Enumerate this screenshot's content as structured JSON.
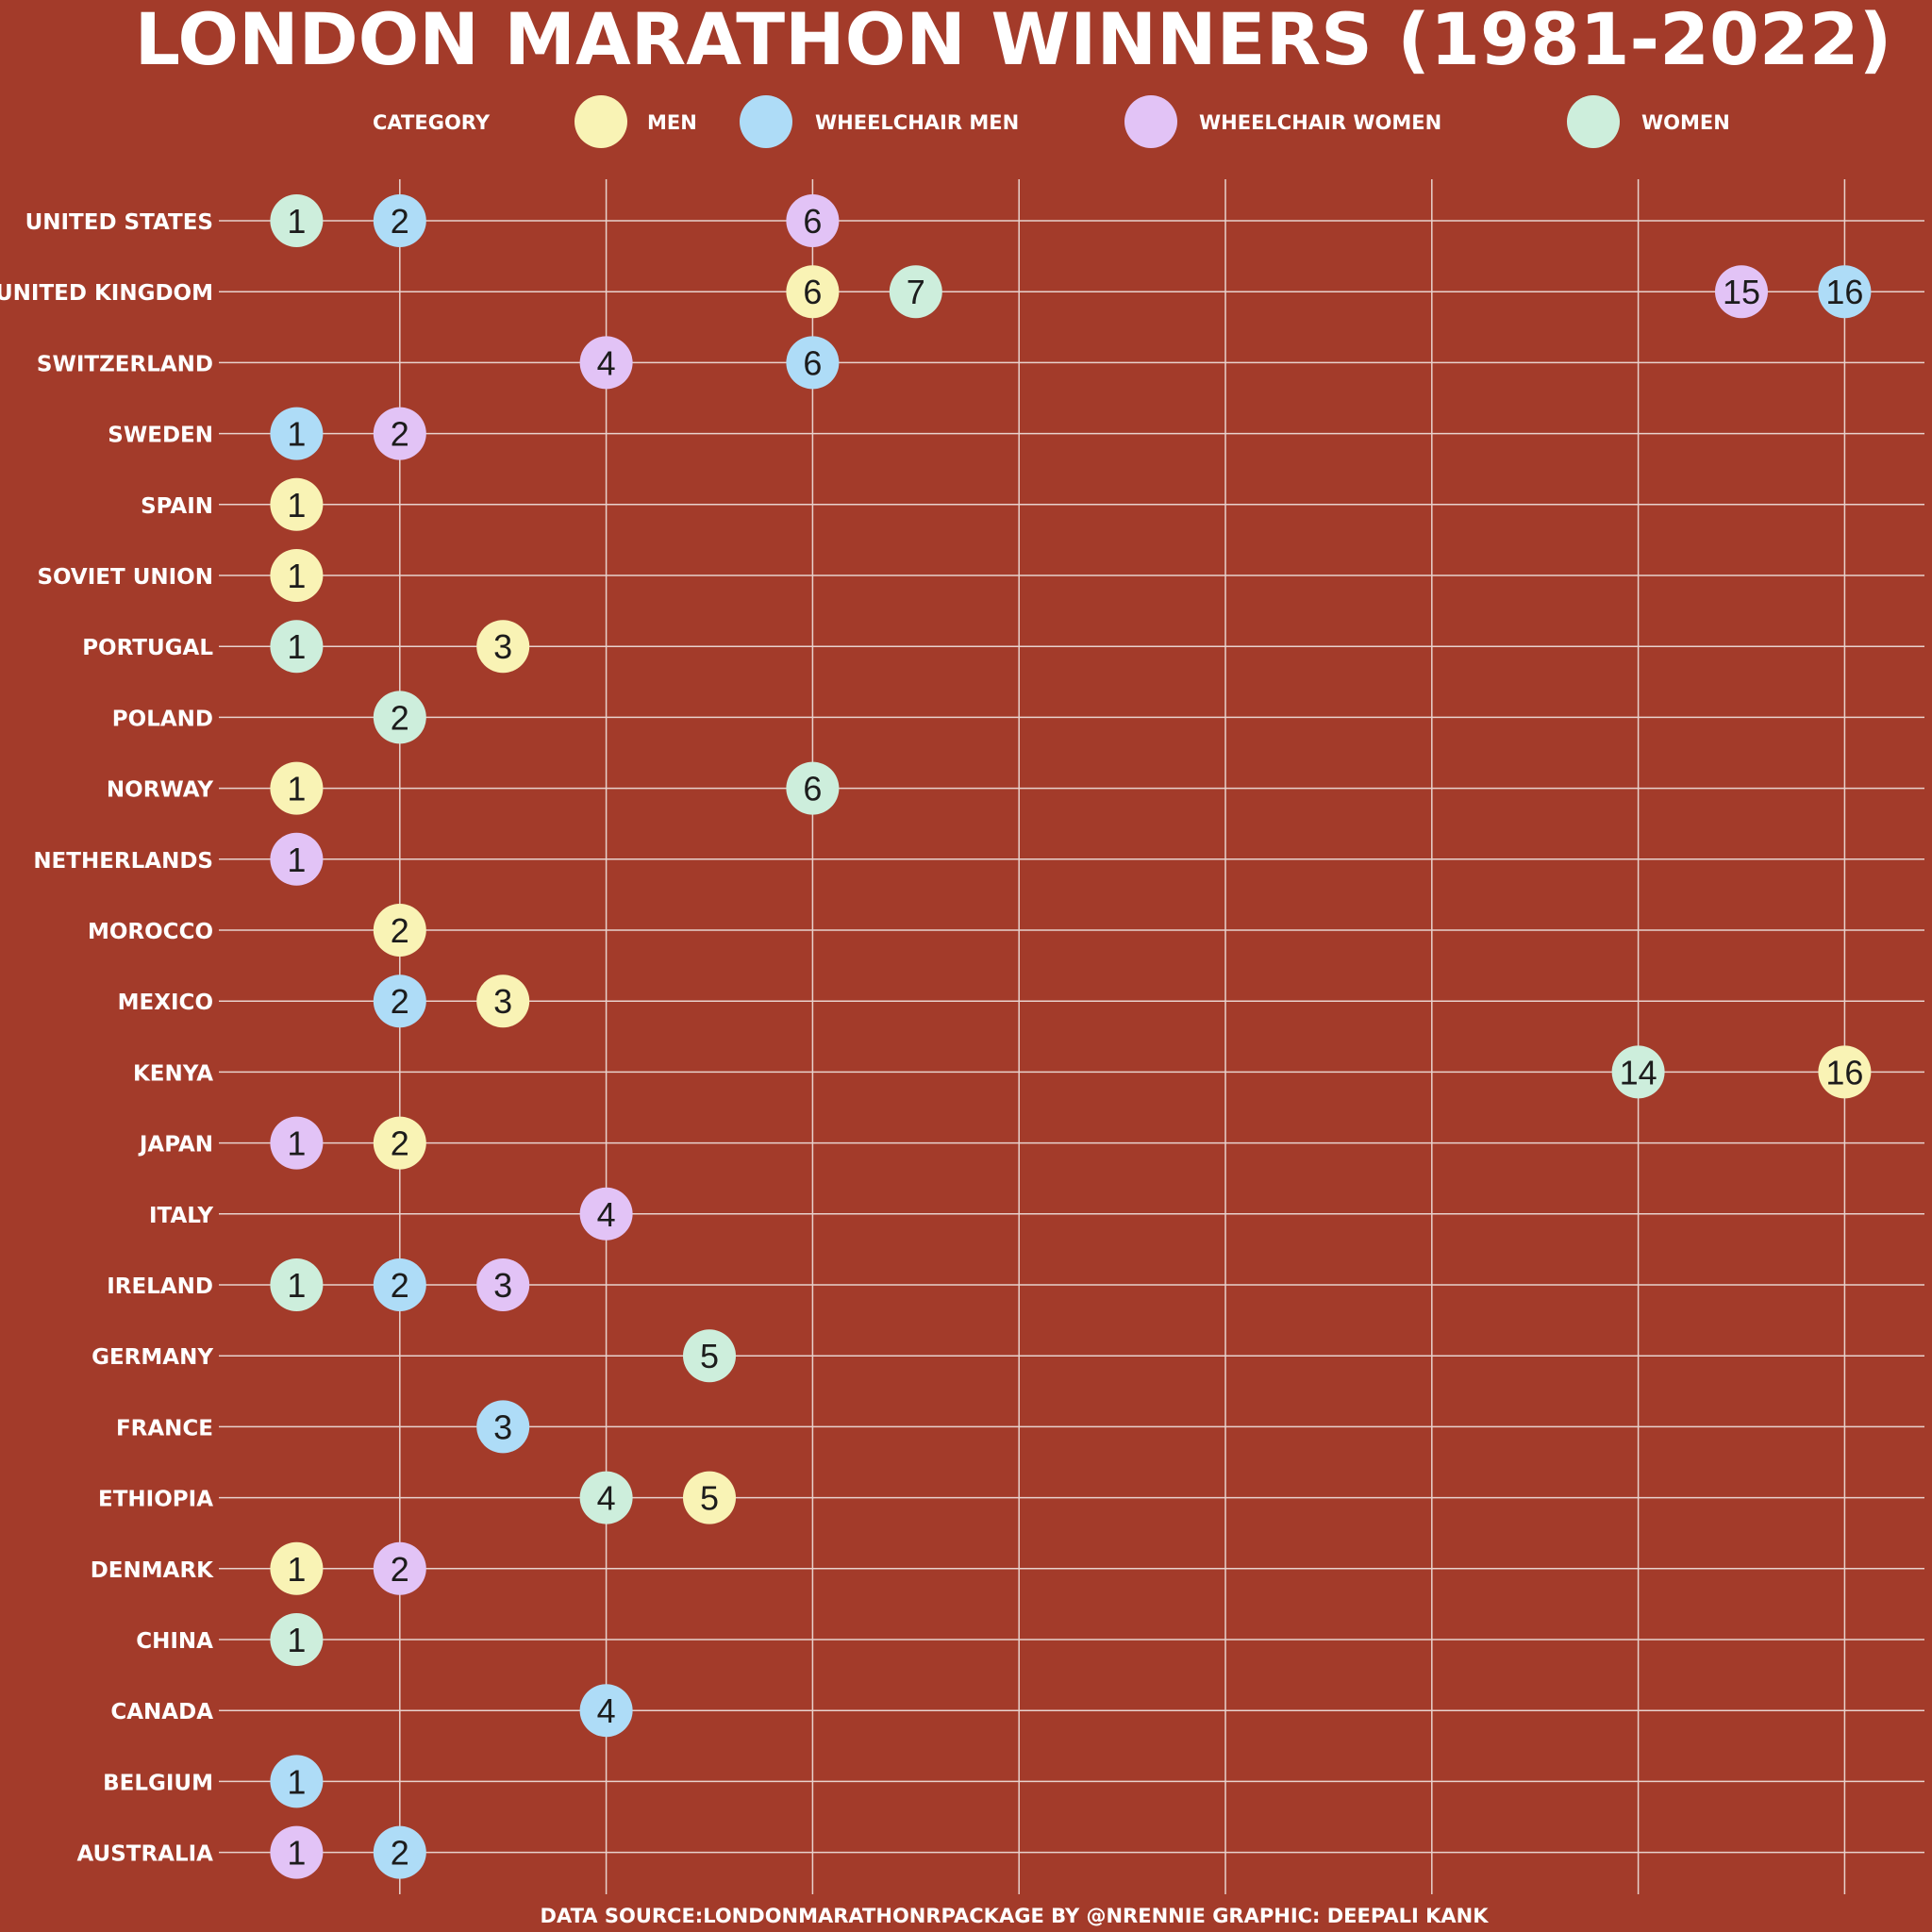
{
  "chart_data": {
    "type": "scatter",
    "title": "LONDON MARATHON WINNERS (1981-2022)",
    "caption": "DATA SOURCE:LONDONMARATHONRPACKAGE BY @NRENNIE GRAPHIC: DEEPALI KANK",
    "legend": {
      "title": "CATEGORY",
      "placement": "top",
      "entries": [
        {
          "name": "MEN",
          "color": "#f9f3b5"
        },
        {
          "name": "WHEELCHAIR MEN",
          "color": "#aedcf7"
        },
        {
          "name": "WHEELCHAIR WOMEN",
          "color": "#e2c3f6"
        },
        {
          "name": "WOMEN",
          "color": "#cdeedc"
        }
      ]
    },
    "xlim": [
      0.5,
      16.5
    ],
    "vertical_gridlines_at": [
      2,
      4,
      6,
      8,
      10,
      12,
      14,
      16
    ],
    "grid": true,
    "background": "#a33b2a",
    "countries": [
      "UNITED STATES",
      "UNITED KINGDOM",
      "SWITZERLAND",
      "SWEDEN",
      "SPAIN",
      "SOVIET UNION",
      "PORTUGAL",
      "POLAND",
      "NORWAY",
      "NETHERLANDS",
      "MOROCCO",
      "MEXICO",
      "KENYA",
      "JAPAN",
      "ITALY",
      "IRELAND",
      "GERMANY",
      "FRANCE",
      "ETHIOPIA",
      "DENMARK",
      "CHINA",
      "CANADA",
      "BELGIUM",
      "AUSTRALIA"
    ],
    "points": [
      {
        "country": "UNITED STATES",
        "category": "WOMEN",
        "wins": 1
      },
      {
        "country": "UNITED STATES",
        "category": "WHEELCHAIR MEN",
        "wins": 2
      },
      {
        "country": "UNITED STATES",
        "category": "WHEELCHAIR WOMEN",
        "wins": 6
      },
      {
        "country": "UNITED KINGDOM",
        "category": "MEN",
        "wins": 6
      },
      {
        "country": "UNITED KINGDOM",
        "category": "WOMEN",
        "wins": 7
      },
      {
        "country": "UNITED KINGDOM",
        "category": "WHEELCHAIR WOMEN",
        "wins": 15
      },
      {
        "country": "UNITED KINGDOM",
        "category": "WHEELCHAIR MEN",
        "wins": 16
      },
      {
        "country": "SWITZERLAND",
        "category": "WHEELCHAIR WOMEN",
        "wins": 4
      },
      {
        "country": "SWITZERLAND",
        "category": "WHEELCHAIR MEN",
        "wins": 6
      },
      {
        "country": "SWEDEN",
        "category": "WHEELCHAIR MEN",
        "wins": 1
      },
      {
        "country": "SWEDEN",
        "category": "WHEELCHAIR WOMEN",
        "wins": 2
      },
      {
        "country": "SPAIN",
        "category": "MEN",
        "wins": 1
      },
      {
        "country": "SOVIET UNION",
        "category": "MEN",
        "wins": 1
      },
      {
        "country": "PORTUGAL",
        "category": "WOMEN",
        "wins": 1
      },
      {
        "country": "PORTUGAL",
        "category": "MEN",
        "wins": 3
      },
      {
        "country": "POLAND",
        "category": "WOMEN",
        "wins": 2
      },
      {
        "country": "NORWAY",
        "category": "MEN",
        "wins": 1
      },
      {
        "country": "NORWAY",
        "category": "WOMEN",
        "wins": 6
      },
      {
        "country": "NETHERLANDS",
        "category": "WHEELCHAIR WOMEN",
        "wins": 1
      },
      {
        "country": "MOROCCO",
        "category": "MEN",
        "wins": 2
      },
      {
        "country": "MEXICO",
        "category": "WHEELCHAIR MEN",
        "wins": 2
      },
      {
        "country": "MEXICO",
        "category": "MEN",
        "wins": 3
      },
      {
        "country": "KENYA",
        "category": "WOMEN",
        "wins": 14
      },
      {
        "country": "KENYA",
        "category": "MEN",
        "wins": 16
      },
      {
        "country": "JAPAN",
        "category": "WHEELCHAIR WOMEN",
        "wins": 1
      },
      {
        "country": "JAPAN",
        "category": "MEN",
        "wins": 2
      },
      {
        "country": "ITALY",
        "category": "WHEELCHAIR WOMEN",
        "wins": 4
      },
      {
        "country": "IRELAND",
        "category": "WOMEN",
        "wins": 1
      },
      {
        "country": "IRELAND",
        "category": "WHEELCHAIR MEN",
        "wins": 2
      },
      {
        "country": "IRELAND",
        "category": "WHEELCHAIR WOMEN",
        "wins": 3
      },
      {
        "country": "GERMANY",
        "category": "WOMEN",
        "wins": 5
      },
      {
        "country": "FRANCE",
        "category": "WHEELCHAIR MEN",
        "wins": 3
      },
      {
        "country": "ETHIOPIA",
        "category": "WOMEN",
        "wins": 4
      },
      {
        "country": "ETHIOPIA",
        "category": "MEN",
        "wins": 5
      },
      {
        "country": "DENMARK",
        "category": "MEN",
        "wins": 1
      },
      {
        "country": "DENMARK",
        "category": "WHEELCHAIR WOMEN",
        "wins": 2
      },
      {
        "country": "CHINA",
        "category": "WOMEN",
        "wins": 1
      },
      {
        "country": "CANADA",
        "category": "WHEELCHAIR MEN",
        "wins": 4
      },
      {
        "country": "BELGIUM",
        "category": "WHEELCHAIR MEN",
        "wins": 1
      },
      {
        "country": "AUSTRALIA",
        "category": "WHEELCHAIR WOMEN",
        "wins": 1
      },
      {
        "country": "AUSTRALIA",
        "category": "WHEELCHAIR MEN",
        "wins": 2
      }
    ]
  }
}
